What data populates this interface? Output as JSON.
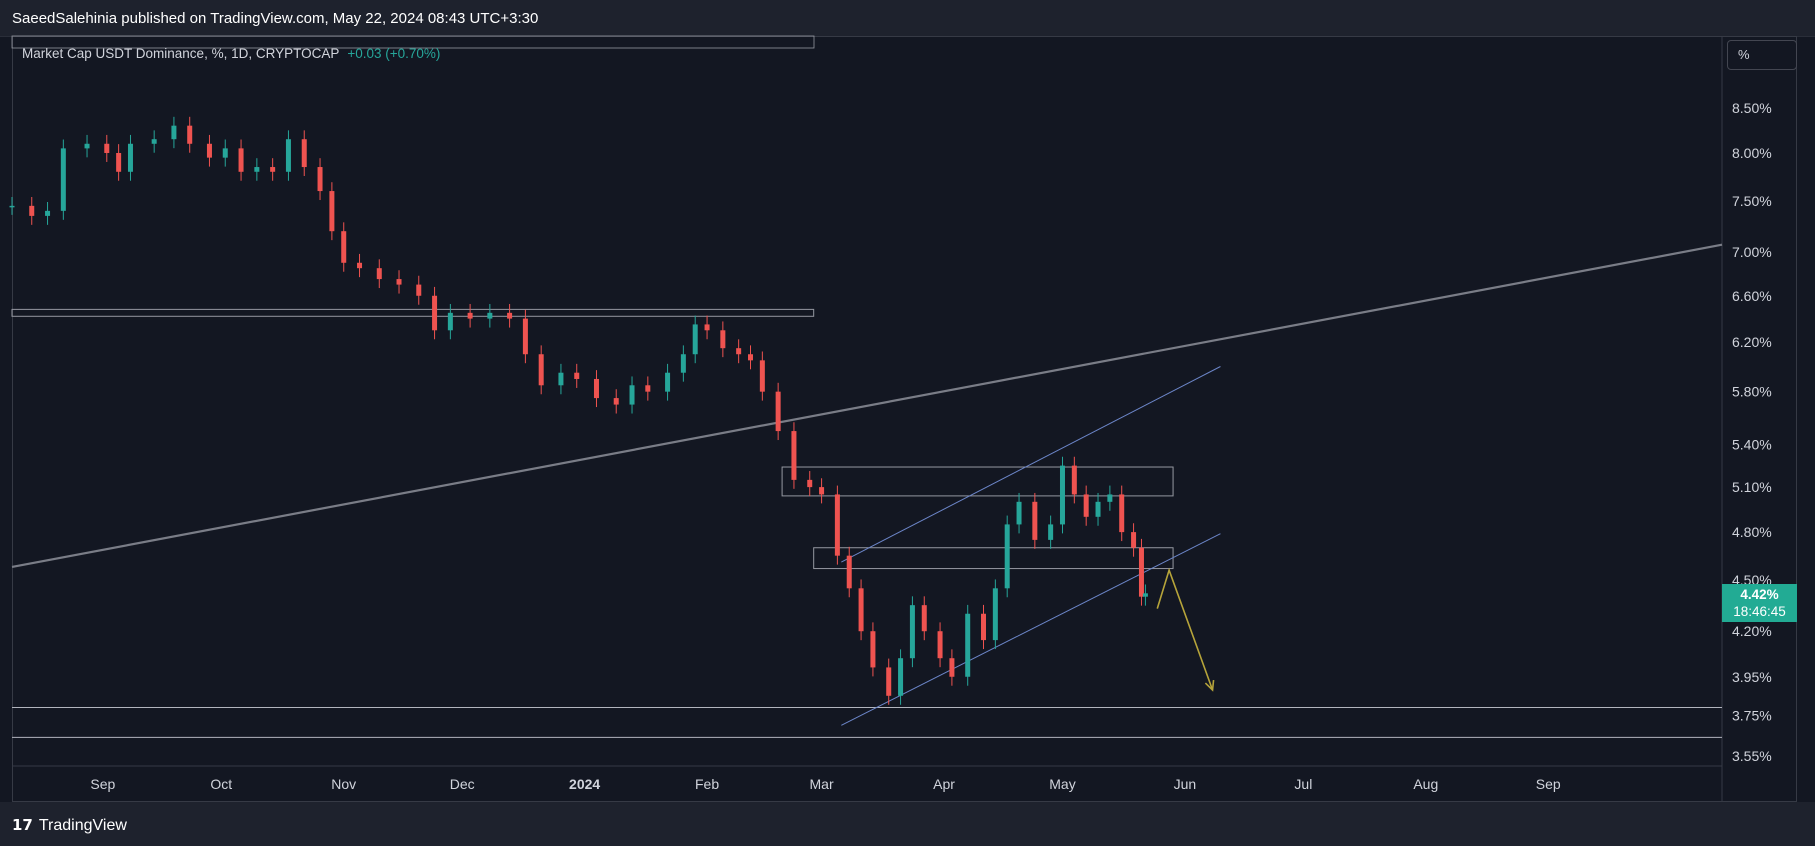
{
  "header": {
    "publisher_line": "SaeedSalehinia published on TradingView.com, May 22, 2024 08:43 UTC+3:30"
  },
  "legend": {
    "symbol": "Market Cap USDT Dominance, %, 1D, CRYPTOCAP",
    "change": "+0.03 (+0.70%)"
  },
  "unit_button": "%",
  "last_price": {
    "value": "4.42%",
    "countdown": "18:46:45"
  },
  "footer": {
    "brand": "TradingView"
  },
  "colors": {
    "up": "#26a69a",
    "down": "#ef5350",
    "trendline": "#7a7d87",
    "channel": "#6c86c9",
    "zone": "#9598a1",
    "arrow": "#b6a43a",
    "accent": "#22ab94"
  },
  "chart_data": {
    "type": "candlestick",
    "title": "Market Cap USDT Dominance, %, 1D, CRYPTOCAP",
    "xlabel": "",
    "ylabel": "%",
    "y_scale": "log",
    "ylim": [
      3.5,
      9.0
    ],
    "x_range": [
      "2023-08-09",
      "2024-10-15"
    ],
    "y_ticks": [
      "8.50%",
      "8.00%",
      "7.50%",
      "7.00%",
      "6.60%",
      "6.20%",
      "5.80%",
      "5.40%",
      "5.10%",
      "4.80%",
      "4.50%",
      "4.20%",
      "3.95%",
      "3.75%",
      "3.55%"
    ],
    "y_tick_values": [
      8.5,
      8.0,
      7.5,
      7.0,
      6.6,
      6.2,
      5.8,
      5.4,
      5.1,
      4.8,
      4.5,
      4.2,
      3.95,
      3.75,
      3.55
    ],
    "x_ticks": [
      {
        "date": "2023-09-01",
        "label": "Sep"
      },
      {
        "date": "2023-10-01",
        "label": "Oct"
      },
      {
        "date": "2023-11-01",
        "label": "Nov"
      },
      {
        "date": "2023-12-01",
        "label": "Dec"
      },
      {
        "date": "2024-01-01",
        "label": "2024",
        "bold": true
      },
      {
        "date": "2024-02-01",
        "label": "Feb"
      },
      {
        "date": "2024-03-01",
        "label": "Mar"
      },
      {
        "date": "2024-04-01",
        "label": "Apr"
      },
      {
        "date": "2024-05-01",
        "label": "May"
      },
      {
        "date": "2024-06-01",
        "label": "Jun"
      },
      {
        "date": "2024-07-01",
        "label": "Jul"
      },
      {
        "date": "2024-08-01",
        "label": "Aug"
      },
      {
        "date": "2024-09-01",
        "label": "Sep"
      }
    ],
    "close_series": [
      [
        "2023-08-09",
        7.45
      ],
      [
        "2023-08-14",
        7.35
      ],
      [
        "2023-08-18",
        7.4
      ],
      [
        "2023-08-22",
        8.05
      ],
      [
        "2023-08-28",
        8.1
      ],
      [
        "2023-09-02",
        8.0
      ],
      [
        "2023-09-05",
        7.8
      ],
      [
        "2023-09-08",
        8.1
      ],
      [
        "2023-09-14",
        8.15
      ],
      [
        "2023-09-19",
        8.3
      ],
      [
        "2023-09-23",
        8.1
      ],
      [
        "2023-09-28",
        7.95
      ],
      [
        "2023-10-02",
        8.05
      ],
      [
        "2023-10-06",
        7.8
      ],
      [
        "2023-10-10",
        7.85
      ],
      [
        "2023-10-14",
        7.8
      ],
      [
        "2023-10-18",
        8.15
      ],
      [
        "2023-10-22",
        7.85
      ],
      [
        "2023-10-26",
        7.6
      ],
      [
        "2023-10-29",
        7.2
      ],
      [
        "2023-11-01",
        6.9
      ],
      [
        "2023-11-05",
        6.85
      ],
      [
        "2023-11-10",
        6.75
      ],
      [
        "2023-11-15",
        6.7
      ],
      [
        "2023-11-20",
        6.6
      ],
      [
        "2023-11-24",
        6.3
      ],
      [
        "2023-11-28",
        6.45
      ],
      [
        "2023-12-03",
        6.4
      ],
      [
        "2023-12-08",
        6.45
      ],
      [
        "2023-12-13",
        6.4
      ],
      [
        "2023-12-17",
        6.1
      ],
      [
        "2023-12-21",
        5.85
      ],
      [
        "2023-12-26",
        5.95
      ],
      [
        "2023-12-30",
        5.9
      ],
      [
        "2024-01-04",
        5.75
      ],
      [
        "2024-01-09",
        5.7
      ],
      [
        "2024-01-13",
        5.85
      ],
      [
        "2024-01-17",
        5.8
      ],
      [
        "2024-01-22",
        5.95
      ],
      [
        "2024-01-26",
        6.1
      ],
      [
        "2024-01-29",
        6.35
      ],
      [
        "2024-02-01",
        6.3
      ],
      [
        "2024-02-05",
        6.15
      ],
      [
        "2024-02-09",
        6.1
      ],
      [
        "2024-02-12",
        6.05
      ],
      [
        "2024-02-15",
        5.8
      ],
      [
        "2024-02-19",
        5.5
      ],
      [
        "2024-02-23",
        5.15
      ],
      [
        "2024-02-27",
        5.1
      ],
      [
        "2024-03-01",
        5.05
      ],
      [
        "2024-03-05",
        4.65
      ],
      [
        "2024-03-08",
        4.45
      ],
      [
        "2024-03-11",
        4.2
      ],
      [
        "2024-03-14",
        4.0
      ],
      [
        "2024-03-18",
        3.85
      ],
      [
        "2024-03-21",
        4.05
      ],
      [
        "2024-03-24",
        4.35
      ],
      [
        "2024-03-27",
        4.2
      ],
      [
        "2024-03-31",
        4.05
      ],
      [
        "2024-04-03",
        3.95
      ],
      [
        "2024-04-07",
        4.3
      ],
      [
        "2024-04-11",
        4.15
      ],
      [
        "2024-04-14",
        4.45
      ],
      [
        "2024-04-17",
        4.85
      ],
      [
        "2024-04-20",
        5.0
      ],
      [
        "2024-04-24",
        4.75
      ],
      [
        "2024-04-28",
        4.85
      ],
      [
        "2024-05-01",
        5.25
      ],
      [
        "2024-05-04",
        5.05
      ],
      [
        "2024-05-07",
        4.9
      ],
      [
        "2024-05-10",
        5.0
      ],
      [
        "2024-05-13",
        5.05
      ],
      [
        "2024-05-16",
        4.8
      ],
      [
        "2024-05-19",
        4.7
      ],
      [
        "2024-05-21",
        4.4
      ],
      [
        "2024-05-22",
        4.42
      ]
    ],
    "drawings": {
      "horizontal_lines": [
        3.79,
        3.64
      ],
      "resistance_zone": {
        "from": "2023-08-09",
        "to": "2024-02-28",
        "top": 6.48,
        "bottom": 6.42
      },
      "supply_zone": {
        "from": "2024-02-20",
        "to": "2024-05-29",
        "top": 5.24,
        "bottom": 5.04
      },
      "demand_zone": {
        "from": "2024-02-28",
        "to": "2024-05-29",
        "top": 4.7,
        "bottom": 4.57
      },
      "long_trendline": [
        [
          "2023-08-09",
          4.58
        ],
        [
          "2024-10-15",
          7.07
        ]
      ],
      "channel_upper": [
        [
          "2024-03-06",
          4.61
        ],
        [
          "2024-06-10",
          6.0
        ]
      ],
      "channel_lower": [
        [
          "2024-03-06",
          3.7
        ],
        [
          "2024-06-10",
          4.79
        ]
      ],
      "projection_arrow": [
        [
          "2024-05-25",
          4.33
        ],
        [
          "2024-05-28",
          4.56
        ],
        [
          "2024-06-08",
          3.88
        ]
      ]
    }
  }
}
